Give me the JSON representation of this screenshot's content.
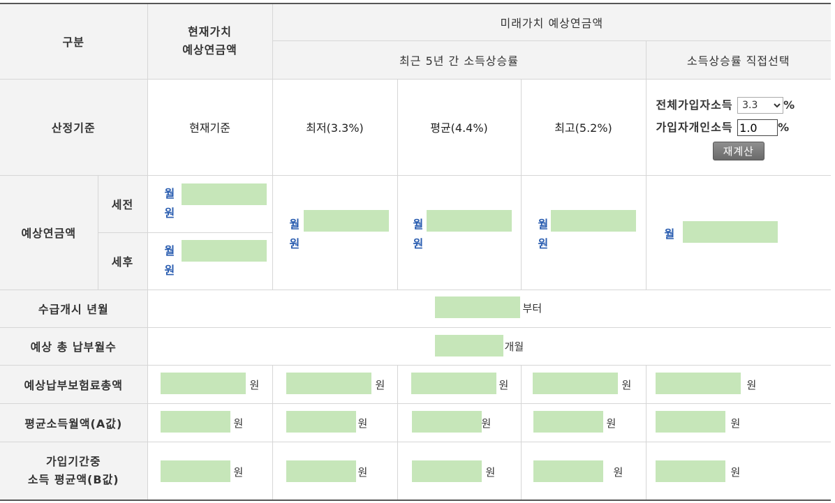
{
  "headers": {
    "gubun": "구분",
    "present_value": "현재가치\n예상연금액",
    "future_value": "미래가치 예상연금액",
    "recent_5yr": "최근 5년 간 소득상승률",
    "direct_select": "소득상승률 직접선택"
  },
  "basis_row": {
    "label": "산정기준",
    "current": "현재기준",
    "min": "최저(3.3%)",
    "avg": "평균(4.4%)",
    "max": "최고(5.2%)",
    "all_income_label": "전체가입자소득",
    "all_income_value": "3.3",
    "personal_income_label": "가입자개인소득",
    "personal_income_value": "1.0",
    "percent": "%",
    "recalc_button": "재계산"
  },
  "pension_row": {
    "label": "예상연금액",
    "pre_tax": "세전",
    "post_tax": "세후",
    "month": "월",
    "won": "원"
  },
  "start_row": {
    "label": "수급개시 년월",
    "suffix": "부터"
  },
  "months_row": {
    "label": "예상 총 납부월수",
    "suffix": "개월"
  },
  "premium_row": {
    "label": "예상납부보험료총액",
    "unit": "원"
  },
  "avg_income_a": {
    "label": "평균소득월액(A값)",
    "unit": "원"
  },
  "avg_income_b": {
    "label": "가입기간중\n소득 평균액(B값)",
    "unit": "원"
  },
  "colors": {
    "redaction": "#c6e6b9",
    "header_bg": "#f3f3f3",
    "link_blue": "#2a5db0"
  }
}
